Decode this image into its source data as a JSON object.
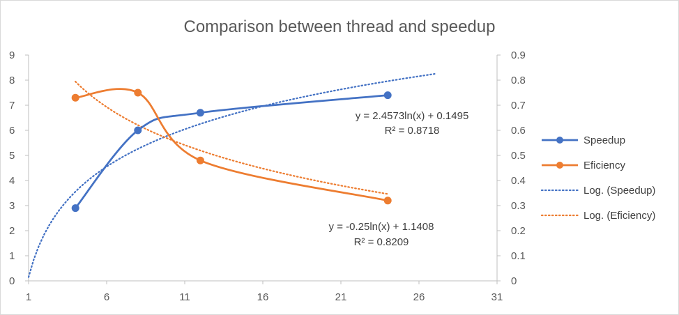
{
  "chart_data": {
    "type": "line",
    "title": "Comparison between thread and speedup",
    "xlabel": "",
    "ylabel": "",
    "xlim": [
      1,
      31
    ],
    "x_ticks": [
      "1",
      "6",
      "11",
      "16",
      "21",
      "26",
      "31"
    ],
    "ylim_left": [
      0,
      9
    ],
    "y_ticks_left": [
      "0",
      "1",
      "2",
      "3",
      "4",
      "5",
      "6",
      "7",
      "8",
      "9"
    ],
    "ylim_right": [
      0,
      0.9
    ],
    "y_ticks_right": [
      "0",
      "0.1",
      "0.2",
      "0.3",
      "0.4",
      "0.5",
      "0.6",
      "0.7",
      "0.8",
      "0.9"
    ],
    "grid": false,
    "legend_position": "right",
    "series": [
      {
        "name": "Speedup",
        "axis": "left",
        "color": "#4472C4",
        "x": [
          4,
          8,
          12,
          24
        ],
        "values": [
          2.9,
          6.0,
          6.7,
          7.4
        ]
      },
      {
        "name": "Eficiency",
        "axis": "right",
        "color": "#ED7D31",
        "x": [
          4,
          8,
          12,
          24
        ],
        "values": [
          0.73,
          0.75,
          0.48,
          0.32
        ]
      }
    ],
    "trendlines": [
      {
        "name": "Log. (Speedup)",
        "axis": "left",
        "color": "#4472C4",
        "a": 2.4573,
        "b": 0.1495,
        "x_range": [
          1,
          27
        ],
        "equation": "y = 2.4573ln(x) + 0.1495",
        "r2": "R² = 0.8718"
      },
      {
        "name": "Log. (Eficiency)",
        "axis": "right",
        "color": "#ED7D31",
        "a": -0.25,
        "b": 1.1408,
        "x_range": [
          4,
          24
        ],
        "equation": "y = -0.25ln(x) + 1.1408",
        "r2": "R² = 0.8209"
      }
    ]
  }
}
